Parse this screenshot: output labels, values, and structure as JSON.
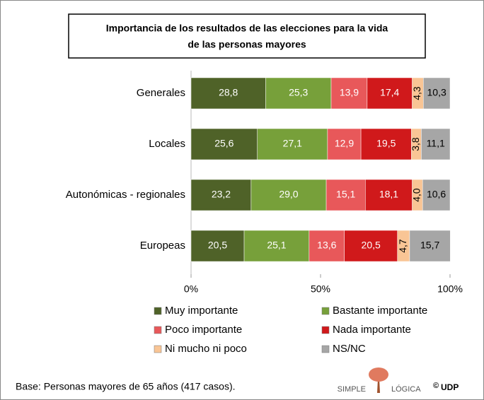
{
  "chart_data": {
    "type": "stacked_barh",
    "title": [
      "Importancia de los resultados de las elecciones para la vida",
      "de las personas mayores"
    ],
    "categories": [
      "Generales",
      "Locales",
      "Autonómicas - regionales",
      "Europeas"
    ],
    "series": [
      {
        "name": "Muy importante",
        "color": "#4f6228",
        "label_color": "#ffffff",
        "values": [
          28.8,
          25.6,
          23.2,
          20.5
        ],
        "value_labels": [
          "28,8",
          "25,6",
          "23,2",
          "20,5"
        ]
      },
      {
        "name": "Bastante importante",
        "color": "#77a03a",
        "label_color": "#ffffff",
        "values": [
          25.3,
          27.1,
          29.0,
          25.1
        ],
        "value_labels": [
          "25,3",
          "27,1",
          "29,0",
          "25,1"
        ]
      },
      {
        "name": "Poco importante",
        "color": "#e8585a",
        "label_color": "#ffffff",
        "values": [
          13.9,
          12.9,
          15.1,
          13.6
        ],
        "value_labels": [
          "13,9",
          "12,9",
          "15,1",
          "13,6"
        ]
      },
      {
        "name": "Nada importante",
        "color": "#d0191b",
        "label_color": "#ffffff",
        "values": [
          17.4,
          19.5,
          18.1,
          20.5
        ],
        "value_labels": [
          "17,4",
          "19,5",
          "18,1",
          "20,5"
        ]
      },
      {
        "name": "Ni mucho ni poco",
        "color": "#f9c595",
        "label_color": "#000000",
        "values": [
          4.3,
          3.8,
          4.0,
          4.7
        ],
        "value_labels": [
          "4,3",
          "3,8",
          "4,0",
          "4,7"
        ]
      },
      {
        "name": "NS/NC",
        "color": "#a6a6a6",
        "label_color": "#000000",
        "values": [
          10.3,
          11.1,
          10.6,
          15.7
        ],
        "value_labels": [
          "10,3",
          "11,1",
          "10,6",
          "15,7"
        ]
      }
    ],
    "xlim": [
      0,
      100
    ],
    "xticks": [
      {
        "value": 0,
        "label": "0%"
      },
      {
        "value": 50,
        "label": "50%"
      },
      {
        "value": 100,
        "label": "100%"
      }
    ],
    "footnote": "Base: Personas mayores de 65 años (417 casos).",
    "logo": [
      "SIMPLE",
      "LÓGICA"
    ],
    "copyright": [
      "©",
      "UDP"
    ]
  }
}
